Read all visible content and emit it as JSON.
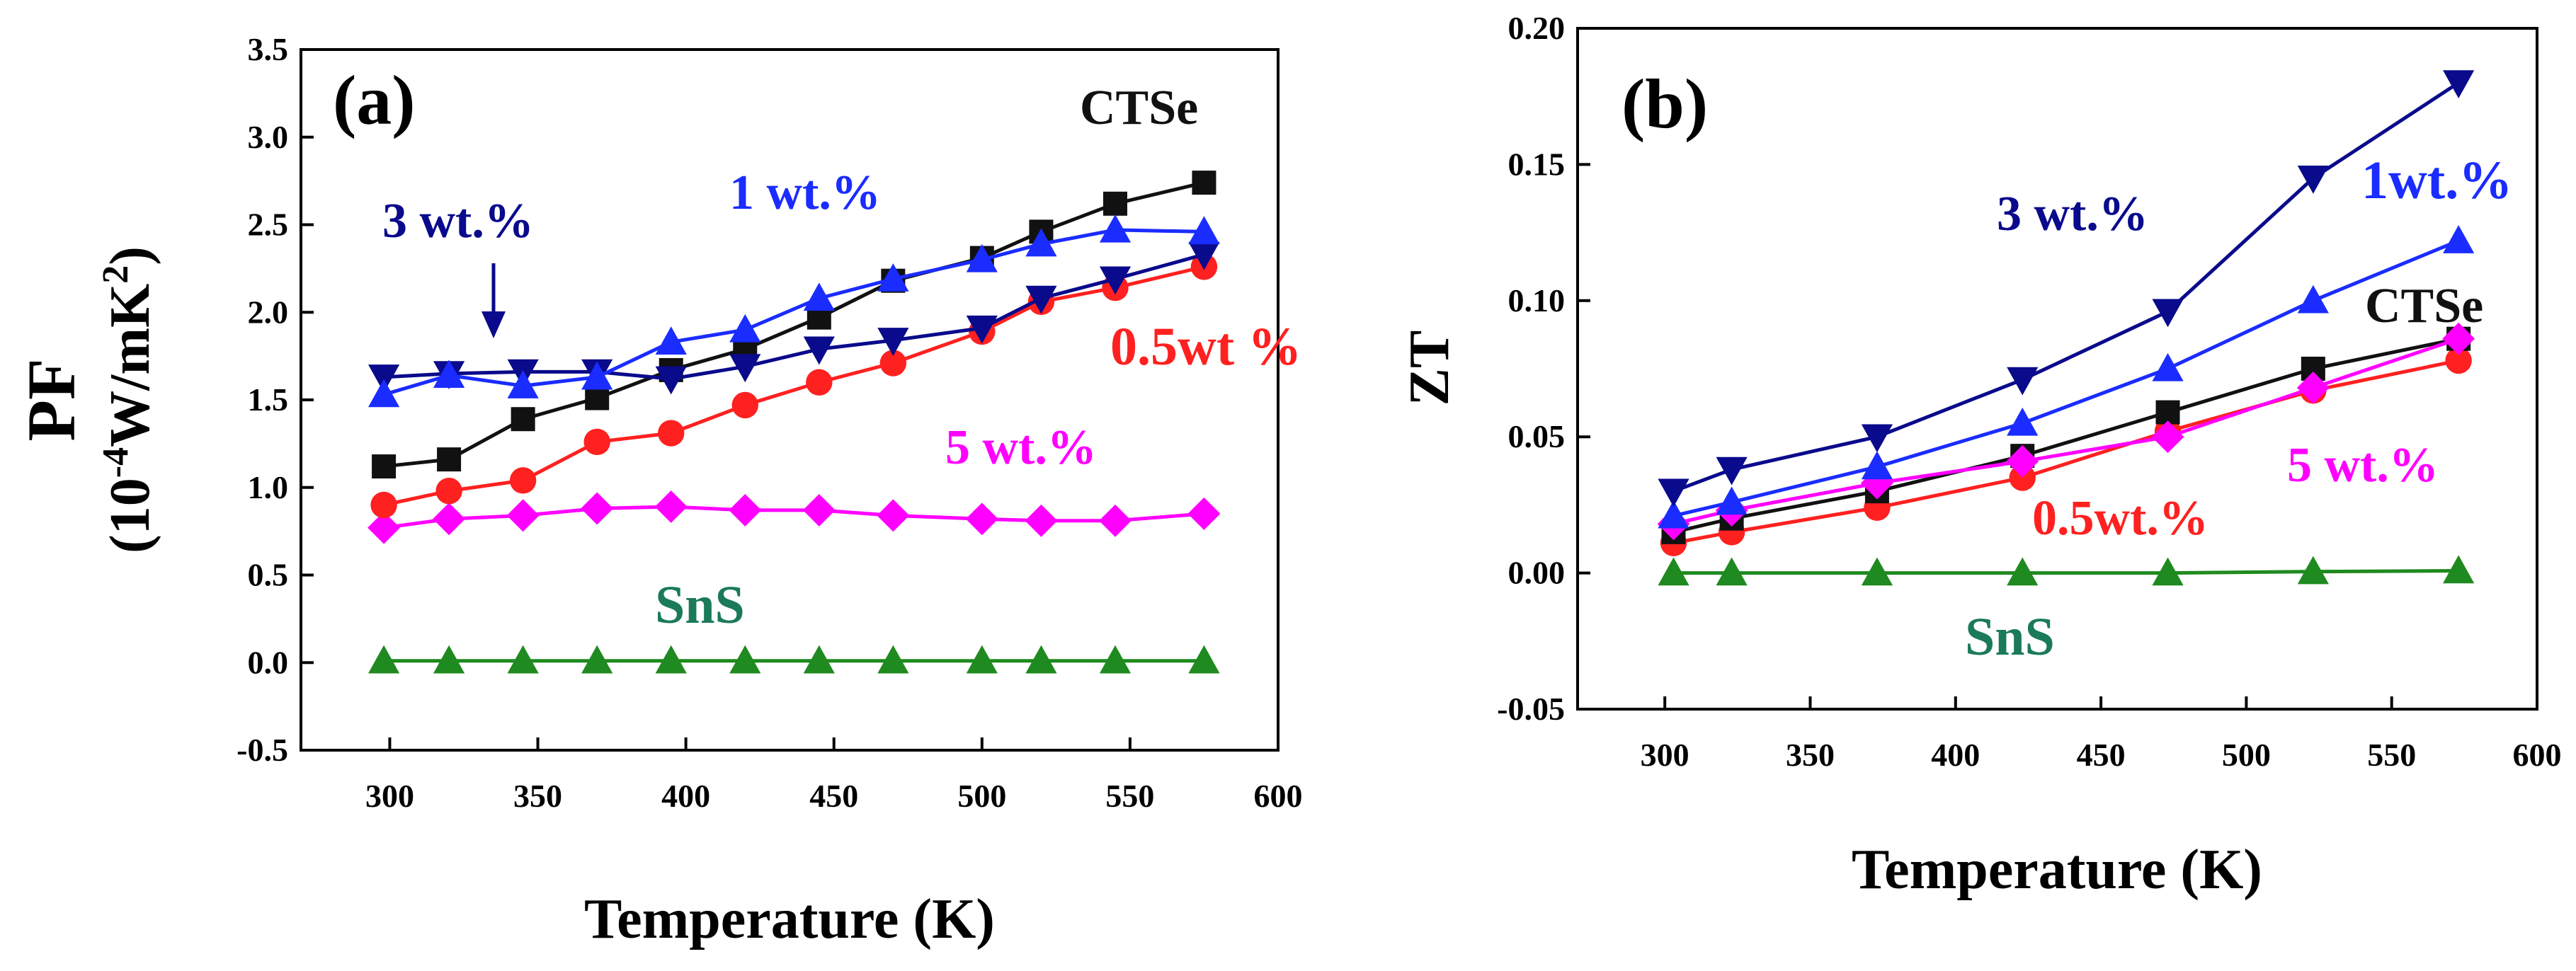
{
  "chart_data": [
    {
      "id": "a",
      "type": "line",
      "panel_label": "(a)",
      "xlabel": "Temperature (K)",
      "ylabel_line1": "PF",
      "ylabel_line2": "(10",
      "ylabel_exp1": "-4",
      "ylabel_mid": "W/mK",
      "ylabel_exp2": "2",
      "ylabel_end": ")",
      "xlim": [
        270,
        600
      ],
      "ylim": [
        -0.5,
        3.5
      ],
      "xticks": [
        300,
        350,
        400,
        450,
        500,
        550,
        600
      ],
      "yticks": [
        -0.5,
        0.0,
        0.5,
        1.0,
        1.5,
        2.0,
        2.5,
        3.0,
        3.5
      ],
      "ytick_labels": [
        "-0.5",
        "0.0",
        "0.5",
        "1.0",
        "1.5",
        "2.0",
        "2.5",
        "3.0",
        "3.5"
      ],
      "series": [
        {
          "name": "SnS",
          "color": "#1f8a1f",
          "marker": "triangle-up",
          "x": [
            298,
            320,
            345,
            370,
            395,
            420,
            445,
            470,
            500,
            520,
            545,
            575
          ],
          "y": [
            0.01,
            0.01,
            0.01,
            0.01,
            0.01,
            0.01,
            0.01,
            0.01,
            0.01,
            0.01,
            0.01,
            0.01
          ]
        },
        {
          "name": "5 wt.%",
          "color": "#ff00ff",
          "marker": "diamond",
          "x": [
            298,
            320,
            345,
            370,
            395,
            420,
            445,
            470,
            500,
            520,
            545,
            575
          ],
          "y": [
            0.77,
            0.82,
            0.84,
            0.88,
            0.89,
            0.87,
            0.87,
            0.84,
            0.82,
            0.81,
            0.81,
            0.85
          ]
        },
        {
          "name": "0.5wt %",
          "color": "#ff2020",
          "marker": "circle",
          "x": [
            298,
            320,
            345,
            370,
            395,
            420,
            445,
            470,
            500,
            520,
            545,
            575
          ],
          "y": [
            0.9,
            0.98,
            1.04,
            1.26,
            1.31,
            1.47,
            1.6,
            1.71,
            1.89,
            2.06,
            2.14,
            2.26
          ]
        },
        {
          "name": "CTSe",
          "color": "#111111",
          "marker": "square",
          "x": [
            298,
            320,
            345,
            370,
            395,
            420,
            445,
            470,
            500,
            520,
            545,
            575
          ],
          "y": [
            1.12,
            1.16,
            1.39,
            1.51,
            1.67,
            1.79,
            1.97,
            2.18,
            2.31,
            2.46,
            2.62,
            2.74
          ]
        },
        {
          "name": "3 wt.%",
          "color": "#0a0a8c",
          "marker": "triangle-down",
          "x": [
            298,
            320,
            345,
            370,
            395,
            420,
            445,
            470,
            500,
            520,
            545,
            575
          ],
          "y": [
            1.63,
            1.65,
            1.66,
            1.66,
            1.62,
            1.69,
            1.79,
            1.84,
            1.91,
            2.08,
            2.19,
            2.33
          ]
        },
        {
          "name": "1 wt.%",
          "color": "#1a2cff",
          "marker": "triangle-up",
          "x": [
            298,
            320,
            345,
            370,
            395,
            420,
            445,
            470,
            500,
            520,
            545,
            575
          ],
          "y": [
            1.53,
            1.64,
            1.58,
            1.63,
            1.83,
            1.9,
            2.08,
            2.19,
            2.3,
            2.39,
            2.47,
            2.46
          ]
        }
      ],
      "annotations": [
        {
          "text": "CTSe",
          "color": "#111111"
        },
        {
          "text": "1 wt.%",
          "color": "#1a2cff"
        },
        {
          "text": "3 wt.%",
          "color": "#0a0a8c"
        },
        {
          "text": "0.5wt %",
          "color": "#ff2020"
        },
        {
          "text": "5 wt.%",
          "color": "#ff00ff"
        },
        {
          "text": "SnS",
          "color": "#1a7a5a"
        }
      ]
    },
    {
      "id": "b",
      "type": "line",
      "panel_label": "(b)",
      "xlabel": "Temperature (K)",
      "ylabel": "ZT",
      "xlim": [
        270,
        600
      ],
      "ylim": [
        -0.05,
        0.2
      ],
      "xticks": [
        300,
        350,
        400,
        450,
        500,
        550,
        600
      ],
      "yticks": [
        -0.05,
        0.0,
        0.05,
        0.1,
        0.15,
        0.2
      ],
      "ytick_labels": [
        "-0.05",
        "0.00",
        "0.05",
        "0.10",
        "0.15",
        "0.20"
      ],
      "series": [
        {
          "name": "SnS",
          "color": "#1f8a1f",
          "marker": "triangle-up",
          "x": [
            303,
            323,
            373,
            423,
            473,
            523,
            573
          ],
          "y": [
            0.0,
            0.0,
            0.0,
            0.0,
            0.0,
            0.0005,
            0.0008
          ]
        },
        {
          "name": "0.5wt.%",
          "color": "#ff2020",
          "marker": "circle",
          "x": [
            303,
            323,
            373,
            423,
            473,
            523,
            573
          ],
          "y": [
            0.011,
            0.015,
            0.024,
            0.035,
            0.052,
            0.067,
            0.078
          ]
        },
        {
          "name": "CTSe",
          "color": "#111111",
          "marker": "square",
          "x": [
            303,
            323,
            373,
            423,
            473,
            523,
            573
          ],
          "y": [
            0.015,
            0.02,
            0.03,
            0.043,
            0.059,
            0.075,
            0.086
          ]
        },
        {
          "name": "5 wt.%",
          "color": "#ff00ff",
          "marker": "diamond",
          "x": [
            303,
            323,
            373,
            423,
            473,
            523,
            573
          ],
          "y": [
            0.018,
            0.023,
            0.033,
            0.041,
            0.05,
            0.068,
            0.086
          ]
        },
        {
          "name": "1wt.%",
          "color": "#1a2cff",
          "marker": "triangle-up",
          "x": [
            303,
            323,
            373,
            423,
            473,
            523,
            573
          ],
          "y": [
            0.021,
            0.026,
            0.039,
            0.055,
            0.075,
            0.1,
            0.122
          ]
        },
        {
          "name": "3 wt.%",
          "color": "#0a0a8c",
          "marker": "triangle-down",
          "x": [
            303,
            323,
            373,
            423,
            473,
            523,
            573
          ],
          "y": [
            0.03,
            0.038,
            0.05,
            0.071,
            0.096,
            0.145,
            0.18
          ]
        }
      ],
      "annotations": [
        {
          "text": "3 wt.%",
          "color": "#0a0a8c"
        },
        {
          "text": "1wt.%",
          "color": "#1a2cff"
        },
        {
          "text": "CTSe",
          "color": "#111111"
        },
        {
          "text": "5 wt.%",
          "color": "#ff00ff"
        },
        {
          "text": "0.5wt.%",
          "color": "#ff2020"
        },
        {
          "text": "SnS",
          "color": "#1a7a5a"
        }
      ]
    }
  ]
}
